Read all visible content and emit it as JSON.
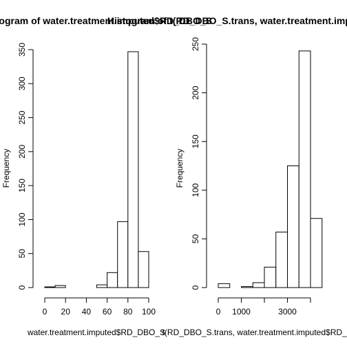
{
  "chart_data": [
    {
      "type": "bar",
      "title": "Histogram of water.treatment.imputed$RD_DBO_S",
      "xlabel": "water.treatment.imputed$RD_DBO_S",
      "ylabel": "Frequency",
      "bins": [
        [
          0,
          10
        ],
        [
          10,
          20
        ],
        [
          20,
          30
        ],
        [
          30,
          40
        ],
        [
          40,
          50
        ],
        [
          50,
          60
        ],
        [
          60,
          70
        ],
        [
          70,
          80
        ],
        [
          80,
          90
        ],
        [
          90,
          100
        ]
      ],
      "values": [
        1,
        3,
        0,
        0,
        0,
        4,
        22,
        97,
        347,
        53
      ],
      "xlim": [
        0,
        100
      ],
      "ylim": [
        0,
        350
      ],
      "xticks": [
        0,
        20,
        40,
        60,
        80,
        100
      ],
      "yticks": [
        0,
        50,
        100,
        150,
        200,
        250,
        300,
        350
      ],
      "grid": false
    },
    {
      "type": "bar",
      "title": "Histogram of t(RD_DBO_S.trans, water.treatment.imputed$RD_DBO_S)",
      "xlabel": "t(RD_DBO_S.trans, water.treatment.imputed$RD_DBO_S)",
      "ylabel": "Frequency",
      "bins": [
        [
          0,
          500
        ],
        [
          500,
          1000
        ],
        [
          1000,
          1500
        ],
        [
          1500,
          2000
        ],
        [
          2000,
          2500
        ],
        [
          2500,
          3000
        ],
        [
          3000,
          3500
        ],
        [
          3500,
          4000
        ],
        [
          4000,
          4500
        ]
      ],
      "values": [
        4,
        0,
        1,
        5,
        21,
        57,
        125,
        243,
        71
      ],
      "xlim": [
        0,
        4000
      ],
      "ylim": [
        0,
        250
      ],
      "xticks": [
        0,
        1000,
        2000,
        3000,
        4000
      ],
      "xticklabels": [
        "0",
        "1000",
        "",
        "3000",
        ""
      ],
      "yticks": [
        0,
        50,
        100,
        150,
        200,
        250
      ],
      "grid": false
    }
  ]
}
